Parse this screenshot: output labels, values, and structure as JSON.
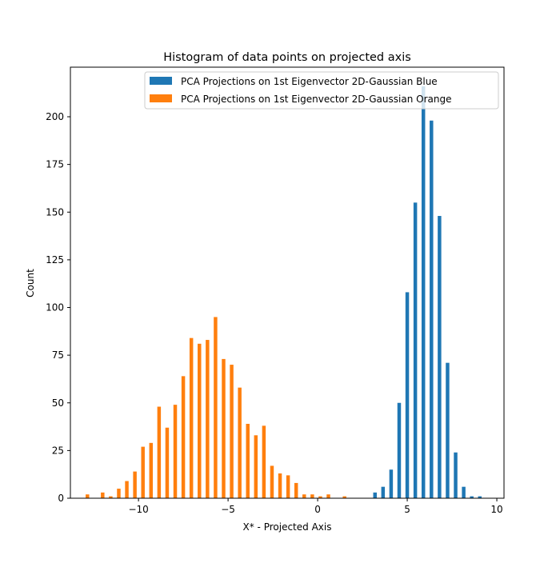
{
  "chart_data": {
    "type": "bar",
    "title": "Histogram of data points on projected axis",
    "xlabel": "X* - Projected Axis",
    "ylabel": "Count",
    "xlim": [
      -13.8,
      10.4
    ],
    "ylim": [
      0,
      226
    ],
    "xticks": [
      -10,
      -5,
      0,
      5,
      10
    ],
    "yticks": [
      0,
      25,
      50,
      75,
      100,
      125,
      150,
      175,
      200
    ],
    "xtick_labels": [
      "−10",
      "−5",
      "0",
      "5",
      "10"
    ],
    "ytick_labels": [
      "0",
      "25",
      "50",
      "75",
      "100",
      "125",
      "150",
      "175",
      "200"
    ],
    "grid": false,
    "legend_position": "upper-right",
    "bar_width": 0.2,
    "series": [
      {
        "name": "PCA Projections on 1st Eigenvector 2D-Gaussian Blue",
        "color": "#1f77b4",
        "x": [
          3.2,
          3.65,
          4.1,
          4.55,
          5.0,
          5.45,
          5.9,
          6.35,
          6.8,
          7.25,
          7.7,
          8.15,
          8.6,
          9.05
        ],
        "values": [
          3,
          6,
          15,
          50,
          108,
          155,
          216,
          198,
          148,
          71,
          24,
          6,
          1,
          1
        ]
      },
      {
        "name": "PCA Projections on 1st Eigenvector 2D-Gaussian Orange",
        "color": "#ff7f0e",
        "x": [
          -12.85,
          -12.0,
          -11.55,
          -11.1,
          -10.65,
          -10.2,
          -9.75,
          -9.3,
          -8.85,
          -8.4,
          -7.95,
          -7.5,
          -7.05,
          -6.6,
          -6.15,
          -5.7,
          -5.25,
          -4.8,
          -4.35,
          -3.9,
          -3.45,
          -3.0,
          -2.55,
          -2.1,
          -1.65,
          -1.2,
          -0.75,
          -0.3,
          0.15,
          0.6,
          1.5
        ],
        "values": [
          2,
          3,
          1,
          5,
          9,
          14,
          27,
          29,
          48,
          37,
          49,
          64,
          84,
          81,
          83,
          95,
          73,
          70,
          58,
          39,
          33,
          38,
          17,
          13,
          12,
          8,
          2,
          2,
          1,
          2,
          1
        ]
      }
    ]
  }
}
